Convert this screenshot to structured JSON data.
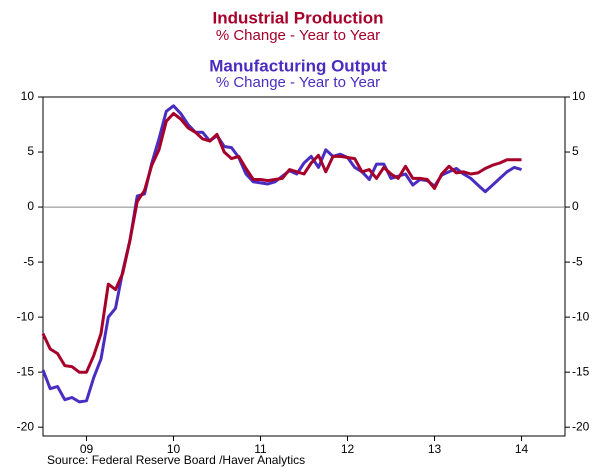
{
  "chart_data": {
    "type": "line",
    "title": "Industrial Production",
    "subtitle": "% Change - Year to Year",
    "title2": "Manufacturing Output",
    "subtitle2": "% Change - Year to Year",
    "source": "Source:  Federal Reserve Board /Haver Analytics",
    "x": [
      2009.0,
      2009.083,
      2009.167,
      2009.25,
      2009.333,
      2009.417,
      2009.5,
      2009.583,
      2009.667,
      2009.75,
      2009.833,
      2009.917,
      2010.0,
      2010.083,
      2010.167,
      2010.25,
      2010.333,
      2010.417,
      2010.5,
      2010.583,
      2010.667,
      2010.75,
      2010.833,
      2010.917,
      2011.0,
      2011.083,
      2011.167,
      2011.25,
      2011.333,
      2011.417,
      2011.5,
      2011.583,
      2011.667,
      2011.75,
      2011.833,
      2011.917,
      2012.0,
      2012.083,
      2012.167,
      2012.25,
      2012.333,
      2012.417,
      2012.5,
      2012.583,
      2012.667,
      2012.75,
      2012.833,
      2012.917,
      2013.0,
      2013.083,
      2013.167,
      2013.25,
      2013.333,
      2013.417,
      2013.5,
      2013.583,
      2013.667,
      2013.75,
      2013.833,
      2013.917,
      2014.0,
      2014.083,
      2014.167,
      2014.25,
      2014.333,
      2014.417,
      2014.5
    ],
    "series": [
      {
        "name": "Manufacturing Output",
        "color": "#4a2dc0",
        "values": [
          -14.8,
          -16.5,
          -16.3,
          -17.5,
          -17.3,
          -17.7,
          -17.6,
          -15.5,
          -13.8,
          -10.0,
          -9.2,
          -5.8,
          -3.0,
          1.0,
          1.2,
          4.0,
          6.2,
          8.7,
          9.2,
          8.5,
          7.5,
          6.8,
          6.8,
          6.0,
          6.5,
          5.5,
          5.4,
          4.5,
          3.0,
          2.3,
          2.2,
          2.1,
          2.3,
          2.8,
          3.3,
          3.0,
          4.0,
          4.6,
          3.6,
          5.2,
          4.6,
          4.8,
          4.5,
          3.6,
          3.2,
          2.5,
          3.9,
          3.9,
          2.6,
          2.8,
          3.0,
          2.0,
          2.5,
          2.4,
          1.9,
          2.9,
          3.2,
          3.5,
          3.0,
          2.6,
          2.0,
          1.4,
          2.0,
          2.6,
          3.2,
          3.6,
          3.4
        ]
      },
      {
        "name": "Industrial Production",
        "color": "#a6002a",
        "values": [
          -11.5,
          -12.9,
          -13.3,
          -14.4,
          -14.5,
          -15.0,
          -15.0,
          -13.5,
          -11.5,
          -7.0,
          -7.5,
          -6.0,
          -3.0,
          0.5,
          1.5,
          3.8,
          5.2,
          7.8,
          8.5,
          8.0,
          7.2,
          6.8,
          6.2,
          6.0,
          6.6,
          5.0,
          4.4,
          4.6,
          3.5,
          2.5,
          2.5,
          2.4,
          2.5,
          2.6,
          3.4,
          3.2,
          3.0,
          4.0,
          4.7,
          3.2,
          4.6,
          4.6,
          4.5,
          4.4,
          3.2,
          3.4,
          2.6,
          3.6,
          3.0,
          2.6,
          3.7,
          2.6,
          2.6,
          2.5,
          1.7,
          3.0,
          3.7,
          3.1,
          3.2,
          3.0,
          3.1,
          3.5,
          3.8,
          4.0,
          4.3,
          4.3,
          4.3
        ]
      }
    ],
    "xlim": [
      2009,
      2015
    ],
    "xticks": [
      {
        "value": 2009.5,
        "label": "09"
      },
      {
        "value": 2010.5,
        "label": "10"
      },
      {
        "value": 2011.5,
        "label": "11"
      },
      {
        "value": 2012.5,
        "label": "12"
      },
      {
        "value": 2013.5,
        "label": "13"
      },
      {
        "value": 2014.5,
        "label": "14"
      }
    ],
    "ylim": [
      -20.8,
      10
    ],
    "yticks": [
      -20,
      -15,
      -10,
      -5,
      0,
      5,
      10
    ],
    "y2lim": [
      -20.8,
      10
    ],
    "y2ticks": [
      -20,
      -15,
      -10,
      -5,
      0,
      5,
      10
    ]
  }
}
